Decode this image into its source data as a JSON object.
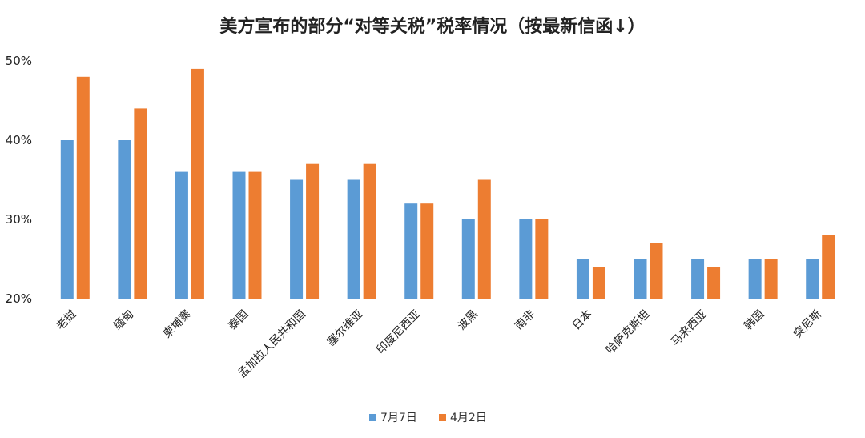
{
  "chart_data": {
    "type": "bar",
    "title": "美方宣布的部分“对等关税”税率情况（按最新信函↓）",
    "xlabel": "",
    "ylabel": "",
    "ylim": [
      20,
      50
    ],
    "yticks": [
      "20%",
      "30%",
      "40%",
      "50%"
    ],
    "ytick_values": [
      20,
      30,
      40,
      50
    ],
    "grid": false,
    "legend_position": "bottom",
    "categories": [
      "老挝",
      "缅甸",
      "柬埔寨",
      "泰国",
      "孟加拉人民共和国",
      "塞尔维亚",
      "印度尼西亚",
      "波黑",
      "南非",
      "日本",
      "哈萨克斯坦",
      "马来西亚",
      "韩国",
      "突尼斯"
    ],
    "series": [
      {
        "name": "7月7日",
        "color": "#5b9bd5",
        "values": [
          40,
          40,
          36,
          36,
          35,
          35,
          32,
          30,
          30,
          25,
          25,
          25,
          25,
          25
        ]
      },
      {
        "name": "4月2日",
        "color": "#ed7d31",
        "values": [
          48,
          44,
          49,
          36,
          37,
          37,
          32,
          35,
          30,
          24,
          27,
          24,
          25,
          28
        ]
      }
    ]
  }
}
